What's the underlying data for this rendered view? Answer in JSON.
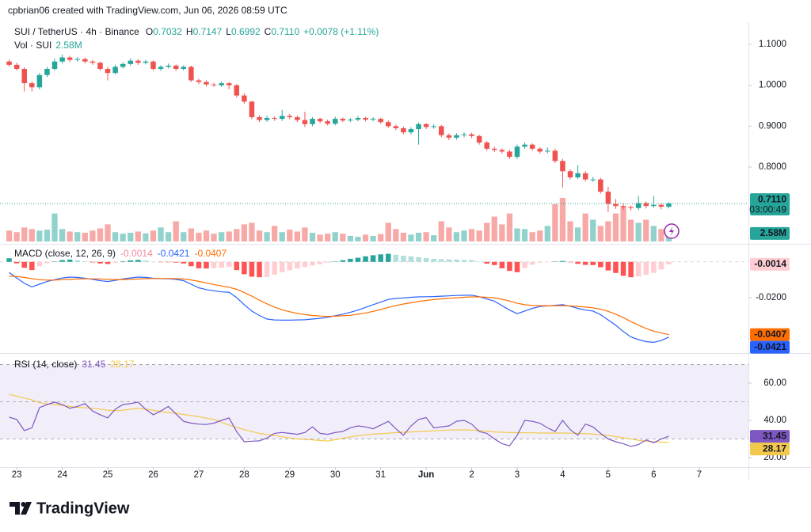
{
  "header": "cpbrian06 created with TradingView.com, Jun 06, 2026 08:59 UTC",
  "footer": "TradingView",
  "chart_data": {
    "type": "candlestick",
    "symbol": "SUI / TetherUS · 4h · Binance",
    "ohlc_keys": [
      "O",
      "H",
      "L",
      "C"
    ],
    "close_label": "0.7110",
    "change": "+0.0078 (+1.11%)",
    "countdown": "03:00:49",
    "up_color": "#26a69a",
    "down_color": "#ef5350",
    "open": [
      1.058,
      1.05,
      1.04,
      1.005,
      0.995,
      1.025,
      1.04,
      1.058,
      1.068,
      1.062,
      1.064,
      1.058,
      1.055,
      1.04,
      1.03,
      1.045,
      1.052,
      1.06,
      1.055,
      1.058,
      1.04,
      1.045,
      1.048,
      1.04,
      1.045,
      1.012,
      1.008,
      1.002,
      1.0,
      1.005,
      1.0,
      0.975,
      0.96,
      0.922,
      0.915,
      0.92,
      0.918,
      0.925,
      0.922,
      0.915,
      0.905,
      0.918,
      0.912,
      0.906,
      0.918,
      0.914,
      0.916,
      0.92,
      0.916,
      0.918,
      0.91,
      0.9,
      0.895,
      0.885,
      0.893,
      0.905,
      0.898,
      0.9,
      0.878,
      0.872,
      0.878,
      0.88,
      0.876,
      0.86,
      0.845,
      0.842,
      0.838,
      0.825,
      0.85,
      0.855,
      0.845,
      0.838,
      0.84,
      0.815,
      0.79,
      0.775,
      0.785,
      0.77,
      0.77,
      0.74,
      0.71,
      0.705,
      0.702,
      0.7,
      0.712,
      0.705,
      0.708,
      0.7032
    ],
    "high": [
      1.063,
      1.055,
      1.044,
      1.01,
      1.03,
      1.045,
      1.065,
      1.075,
      1.072,
      1.069,
      1.068,
      1.062,
      1.058,
      1.045,
      1.05,
      1.056,
      1.066,
      1.064,
      1.062,
      1.061,
      1.049,
      1.053,
      1.051,
      1.049,
      1.048,
      1.016,
      1.012,
      1.006,
      1.009,
      1.008,
      1.003,
      0.98,
      0.962,
      0.927,
      0.926,
      0.924,
      0.94,
      0.93,
      0.926,
      0.935,
      0.922,
      0.921,
      0.916,
      0.923,
      0.921,
      0.92,
      0.925,
      0.923,
      0.922,
      0.921,
      0.914,
      0.904,
      0.899,
      0.897,
      0.909,
      0.908,
      0.905,
      0.903,
      0.882,
      0.883,
      0.885,
      0.884,
      0.879,
      0.864,
      0.85,
      0.846,
      0.842,
      0.855,
      0.86,
      0.858,
      0.849,
      0.848,
      0.845,
      0.82,
      0.795,
      0.805,
      0.79,
      0.776,
      0.774,
      0.752,
      0.722,
      0.712,
      0.706,
      0.73,
      0.716,
      0.73,
      0.712,
      0.7147
    ],
    "low": [
      1.045,
      1.036,
      0.985,
      0.985,
      0.99,
      1.02,
      1.036,
      1.053,
      1.057,
      1.058,
      1.054,
      1.05,
      1.036,
      1.012,
      1.026,
      1.041,
      1.048,
      1.05,
      1.051,
      1.036,
      1.035,
      1.041,
      1.035,
      1.036,
      1.008,
      1.003,
      0.997,
      0.996,
      0.996,
      0.99,
      0.97,
      0.955,
      0.917,
      0.91,
      0.911,
      0.913,
      0.913,
      0.917,
      0.91,
      0.898,
      0.9,
      0.907,
      0.902,
      0.902,
      0.91,
      0.91,
      0.912,
      0.912,
      0.912,
      0.906,
      0.896,
      0.89,
      0.88,
      0.88,
      0.855,
      0.893,
      0.894,
      0.873,
      0.866,
      0.867,
      0.873,
      0.871,
      0.855,
      0.84,
      0.837,
      0.833,
      0.82,
      0.82,
      0.845,
      0.84,
      0.833,
      0.834,
      0.81,
      0.75,
      0.77,
      0.771,
      0.765,
      0.764,
      0.735,
      0.69,
      0.698,
      0.696,
      0.694,
      0.695,
      0.699,
      0.7,
      0.697,
      0.6992
    ],
    "close": [
      1.05,
      1.04,
      1.005,
      0.995,
      1.025,
      1.04,
      1.058,
      1.068,
      1.062,
      1.064,
      1.058,
      1.055,
      1.04,
      1.03,
      1.045,
      1.052,
      1.06,
      1.055,
      1.058,
      1.04,
      1.045,
      1.048,
      1.04,
      1.045,
      1.012,
      1.008,
      1.002,
      1.0,
      1.005,
      1.0,
      0.975,
      0.96,
      0.922,
      0.915,
      0.92,
      0.918,
      0.925,
      0.922,
      0.915,
      0.905,
      0.918,
      0.912,
      0.906,
      0.918,
      0.914,
      0.916,
      0.92,
      0.916,
      0.918,
      0.91,
      0.9,
      0.895,
      0.885,
      0.893,
      0.905,
      0.898,
      0.9,
      0.878,
      0.872,
      0.878,
      0.88,
      0.876,
      0.86,
      0.845,
      0.842,
      0.838,
      0.825,
      0.85,
      0.855,
      0.845,
      0.838,
      0.84,
      0.815,
      0.79,
      0.775,
      0.785,
      0.77,
      0.77,
      0.74,
      0.71,
      0.705,
      0.702,
      0.7,
      0.712,
      0.705,
      0.708,
      0.7032,
      0.711
    ],
    "xlim": [
      -1,
      97.5
    ],
    "xticks": [
      {
        "value": 1,
        "label": "23"
      },
      {
        "value": 7,
        "label": "24"
      },
      {
        "value": 13,
        "label": "25"
      },
      {
        "value": 19,
        "label": "26"
      },
      {
        "value": 25,
        "label": "27"
      },
      {
        "value": 31,
        "label": "28"
      },
      {
        "value": 37,
        "label": "29"
      },
      {
        "value": 43,
        "label": "30"
      },
      {
        "value": 49,
        "label": "31"
      },
      {
        "value": 55,
        "label": "Jun"
      },
      {
        "value": 61,
        "label": "2"
      },
      {
        "value": 67,
        "label": "3"
      },
      {
        "value": 73,
        "label": "4"
      },
      {
        "value": 79,
        "label": "5"
      },
      {
        "value": 85,
        "label": "6"
      },
      {
        "value": 91,
        "label": "7"
      }
    ],
    "ylim": [
      0.6145,
      1.1503
    ],
    "yticks": [
      {
        "value": 1.1,
        "label": "1.1000"
      },
      {
        "value": 1.0,
        "label": "1.0000"
      },
      {
        "value": 0.9,
        "label": "0.9000"
      },
      {
        "value": 0.8,
        "label": "0.8000"
      }
    ],
    "volume": {
      "title": "Vol · SUI",
      "last_label": "2.58M",
      "values": [
        3.5,
        3.0,
        4.5,
        4.0,
        3.5,
        3.8,
        9.0,
        4.0,
        3.2,
        3.0,
        2.8,
        3.5,
        4.2,
        5.5,
        3.0,
        2.5,
        2.8,
        3.2,
        2.6,
        3.5,
        4.5,
        3.0,
        6.5,
        3.0,
        4.2,
        2.8,
        3.5,
        2.5,
        3.0,
        3.2,
        4.0,
        5.5,
        6.0,
        3.5,
        3.0,
        5.0,
        3.0,
        3.8,
        3.2,
        4.5,
        2.8,
        2.2,
        2.5,
        3.0,
        2.5,
        1.8,
        1.5,
        2.2,
        1.8,
        2.4,
        6.0,
        4.0,
        2.8,
        2.2,
        2.8,
        3.0,
        2.0,
        6.5,
        4.5,
        3.0,
        3.5,
        4.0,
        3.5,
        6.0,
        8.0,
        5.5,
        9.0,
        4.2,
        4.0,
        3.0,
        3.5,
        5.0,
        12.0,
        14.0,
        6.5,
        4.5,
        9.0,
        7.0,
        5.0,
        6.5,
        9.0,
        11.0,
        7.0,
        6.0,
        7.0,
        5.0,
        4.0,
        2.58
      ]
    },
    "macd": {
      "title": "MACD (close, 12, 26, 9)",
      "macd_color": "#2962ff",
      "signal_color": "#ff6d00",
      "histogram_colors": [
        "#26a69a",
        "#b2dfdb",
        "#ffcdd2",
        "#ff5252"
      ],
      "ylim": [
        -0.0506,
        0.0092
      ],
      "yticks": [
        {
          "value": -0.02,
          "label": "-0.0200"
        }
      ],
      "histogram": [
        0.002,
        -0.0008,
        -0.0033,
        -0.0046,
        -0.0025,
        -0.0008,
        0.0002,
        0.001,
        0.0013,
        0.0009,
        0.0003,
        -0.0003,
        -0.0009,
        -0.0012,
        -0.0005,
        0.0003,
        0.0008,
        0.0011,
        0.0007,
        0.0001,
        -0.0001,
        -0.0002,
        -0.0004,
        -0.0009,
        -0.0024,
        -0.0036,
        -0.0037,
        -0.0035,
        -0.0033,
        -0.0028,
        -0.0046,
        -0.0069,
        -0.0083,
        -0.0086,
        -0.0085,
        -0.0072,
        -0.0058,
        -0.0047,
        -0.0037,
        -0.0029,
        -0.002,
        -0.0013,
        -0.0005,
        0.0002,
        0.0009,
        0.0017,
        0.0023,
        0.0031,
        0.0037,
        0.0042,
        0.0045,
        0.004,
        0.0034,
        0.0031,
        0.0026,
        0.0021,
        0.0017,
        0.0015,
        0.0014,
        0.0013,
        0.0011,
        0.001,
        0.0001,
        -0.001,
        -0.0018,
        -0.0036,
        -0.0051,
        -0.0058,
        -0.0035,
        -0.0016,
        -0.0005,
        -0.0001,
        0.0002,
        0.0005,
        -0.0002,
        -0.0011,
        -0.0017,
        -0.0018,
        -0.003,
        -0.0048,
        -0.0062,
        -0.0078,
        -0.0086,
        -0.0081,
        -0.0073,
        -0.0062,
        -0.0042,
        -0.0014
      ],
      "macd": [
        -0.006,
        -0.009,
        -0.012,
        -0.014,
        -0.0125,
        -0.011,
        -0.01,
        -0.009,
        -0.0085,
        -0.0087,
        -0.0092,
        -0.0098,
        -0.0105,
        -0.011,
        -0.0104,
        -0.0096,
        -0.009,
        -0.0085,
        -0.0087,
        -0.0092,
        -0.0094,
        -0.0095,
        -0.0098,
        -0.0105,
        -0.0125,
        -0.0145,
        -0.0155,
        -0.0162,
        -0.0168,
        -0.017,
        -0.02,
        -0.024,
        -0.0275,
        -0.03,
        -0.032,
        -0.0325,
        -0.0326,
        -0.0326,
        -0.0325,
        -0.0324,
        -0.032,
        -0.0316,
        -0.031,
        -0.0302,
        -0.0293,
        -0.0282,
        -0.027,
        -0.0255,
        -0.024,
        -0.0225,
        -0.021,
        -0.0205,
        -0.0202,
        -0.0198,
        -0.0196,
        -0.0195,
        -0.0194,
        -0.0192,
        -0.019,
        -0.0188,
        -0.0187,
        -0.0186,
        -0.0195,
        -0.0208,
        -0.022,
        -0.0245,
        -0.027,
        -0.029,
        -0.0275,
        -0.026,
        -0.025,
        -0.0246,
        -0.0243,
        -0.024,
        -0.0248,
        -0.026,
        -0.027,
        -0.0275,
        -0.0295,
        -0.0325,
        -0.0355,
        -0.039,
        -0.042,
        -0.0435,
        -0.0446,
        -0.045,
        -0.044,
        -0.0421
      ],
      "signal": [
        -0.008,
        -0.0082,
        -0.0087,
        -0.0094,
        -0.01,
        -0.0102,
        -0.0102,
        -0.01,
        -0.0098,
        -0.0096,
        -0.0095,
        -0.0095,
        -0.0096,
        -0.0098,
        -0.0099,
        -0.0099,
        -0.0098,
        -0.0096,
        -0.0094,
        -0.0093,
        -0.0093,
        -0.0093,
        -0.0094,
        -0.0096,
        -0.0101,
        -0.0109,
        -0.0118,
        -0.0127,
        -0.0135,
        -0.0142,
        -0.0154,
        -0.0171,
        -0.0192,
        -0.0214,
        -0.0235,
        -0.0253,
        -0.0268,
        -0.0279,
        -0.0288,
        -0.0295,
        -0.03,
        -0.0303,
        -0.0305,
        -0.0304,
        -0.0302,
        -0.0299,
        -0.0293,
        -0.0286,
        -0.0277,
        -0.0267,
        -0.0255,
        -0.0245,
        -0.0236,
        -0.0229,
        -0.0222,
        -0.0216,
        -0.0211,
        -0.0207,
        -0.0204,
        -0.0201,
        -0.0198,
        -0.0196,
        -0.0196,
        -0.0198,
        -0.0202,
        -0.0209,
        -0.0219,
        -0.0232,
        -0.024,
        -0.0244,
        -0.0245,
        -0.0245,
        -0.0245,
        -0.0245,
        -0.0246,
        -0.0249,
        -0.0253,
        -0.0257,
        -0.0265,
        -0.0277,
        -0.0293,
        -0.0312,
        -0.0334,
        -0.0354,
        -0.0373,
        -0.0388,
        -0.0398,
        -0.0407
      ]
    },
    "rsi": {
      "title": "RSI (14, close)",
      "color": "#7e57c2",
      "ma_color": "#f2c94c",
      "levels": [
        70,
        50,
        30
      ],
      "ylim": [
        14.9,
        75.3
      ],
      "yticks": [
        {
          "value": 60,
          "label": "60.00"
        },
        {
          "value": 40,
          "label": "40.00"
        },
        {
          "value": 20,
          "label": "20.00"
        }
      ],
      "values": [
        41.7,
        40.5,
        34.5,
        36,
        46.8,
        48.5,
        49.8,
        48.5,
        46.5,
        47.5,
        49,
        45,
        43,
        41.3,
        46,
        48.5,
        49,
        49.8,
        46,
        43,
        45,
        47.5,
        43.5,
        39.5,
        38.5,
        38,
        37.8,
        38.5,
        40,
        41.3,
        34,
        28.5,
        28.8,
        29,
        30.5,
        33,
        33.5,
        33,
        32.5,
        33.5,
        36.5,
        33,
        32.5,
        33.5,
        34,
        36,
        37,
        36.5,
        35.5,
        37.5,
        39.5,
        35.5,
        32,
        37,
        40.5,
        41.5,
        36,
        36.5,
        37,
        39.5,
        40,
        38,
        34,
        33,
        30,
        27.5,
        26.3,
        32,
        40,
        39.5,
        38.5,
        36,
        34,
        40,
        35,
        32,
        38,
        36.5,
        33,
        30,
        28.5,
        27.5,
        26,
        27,
        29.5,
        28,
        30,
        31.45
      ],
      "ma": [
        54,
        53,
        52,
        51,
        49.5,
        48.9,
        48.5,
        48,
        47.5,
        47,
        46.8,
        46.5,
        46,
        45.5,
        45.2,
        45.5,
        46,
        46.5,
        46,
        45.5,
        44.7,
        44.2,
        43.8,
        43.2,
        42.6,
        42,
        41.2,
        40.4,
        39,
        37.5,
        36.2,
        35,
        34,
        33,
        32.4,
        31.9,
        31.2,
        30.6,
        30,
        29.8,
        29.5,
        29.2,
        28.9,
        29.6,
        30.4,
        31.1,
        31.8,
        32.2,
        32.6,
        32.8,
        33.1,
        33.4,
        33.6,
        33.8,
        34,
        34.2,
        34.4,
        34.6,
        34.8,
        34.9,
        34.9,
        34.8,
        34.5,
        34.2,
        33.8,
        33.6,
        33.5,
        33.4,
        33.3,
        33.3,
        33.2,
        33.2,
        33.2,
        33.2,
        33.1,
        33,
        32.8,
        32.6,
        32.3,
        31.9,
        31.3,
        30.6,
        29.9,
        29.3,
        28.8,
        28.5,
        28.3,
        28.17
      ]
    }
  }
}
